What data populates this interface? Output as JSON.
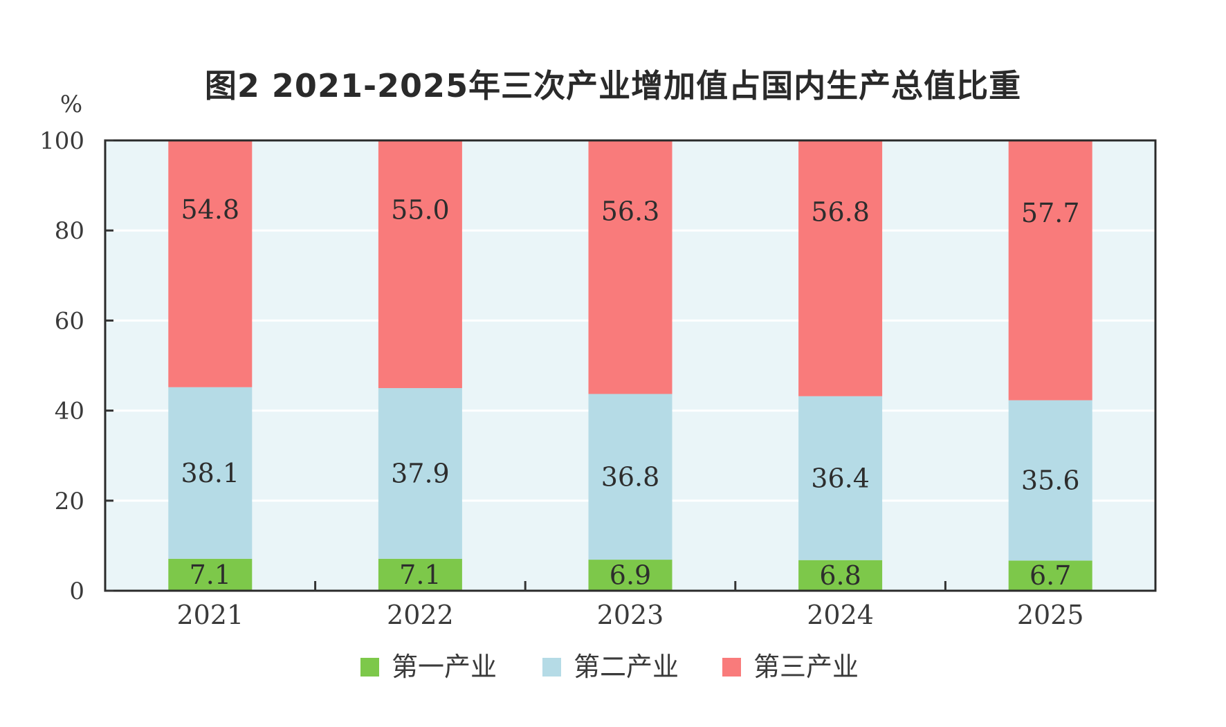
{
  "chart_data": {
    "type": "bar",
    "stacked": true,
    "title": "图2    2021-2025年三次产业增加值占国内生产总值比重",
    "ylabel": "%",
    "ylim": [
      0,
      100
    ],
    "yticks": [
      0,
      20,
      40,
      60,
      80,
      100
    ],
    "categories": [
      "2021",
      "2022",
      "2023",
      "2024",
      "2025"
    ],
    "series": [
      {
        "name": "第一产业",
        "color": "#7dc84a",
        "values": [
          7.1,
          7.1,
          6.9,
          6.8,
          6.7
        ],
        "labels": [
          "7.1",
          "7.1",
          "6.9",
          "6.8",
          "6.7"
        ]
      },
      {
        "name": "第二产业",
        "color": "#b5dbe6",
        "values": [
          38.1,
          37.9,
          36.8,
          36.4,
          35.6
        ],
        "labels": [
          "38.1",
          "37.9",
          "36.8",
          "36.4",
          "35.6"
        ]
      },
      {
        "name": "第三产业",
        "color": "#f97b7b",
        "values": [
          54.8,
          55.0,
          56.3,
          56.8,
          57.7
        ],
        "labels": [
          "54.8",
          "55.0",
          "56.3",
          "56.8",
          "57.7"
        ]
      }
    ],
    "plot_background": "#eaf5f8",
    "grid": true,
    "legend_position": "bottom"
  }
}
